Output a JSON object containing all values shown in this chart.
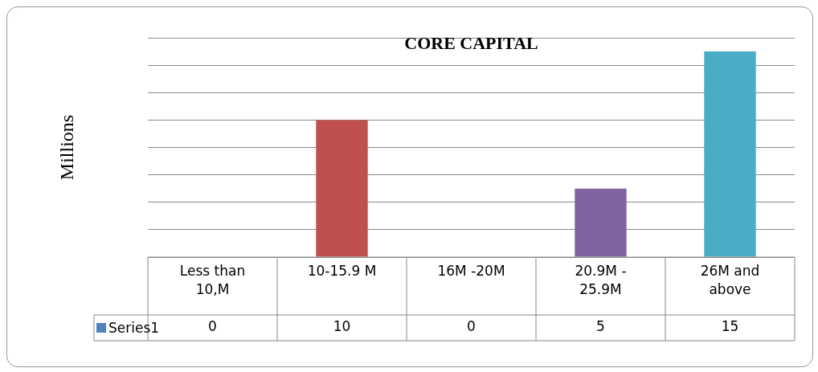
{
  "chart_data": {
    "type": "bar",
    "title": "CORE CAPITAL",
    "ylabel": "Millions",
    "categories": [
      "Less than 10,M",
      "10-15.9 M",
      "16M -20M",
      "20.9M - 25.9M",
      "26M and above"
    ],
    "series": [
      {
        "name": "Series1",
        "color": "#4f81bd",
        "colors": [
          "#4f81bd",
          "#c0504d",
          "#9bbb59",
          "#8064a2",
          "#4bacc6"
        ],
        "values": [
          0,
          10,
          0,
          5,
          15
        ]
      }
    ],
    "ylim": [
      0,
      16
    ],
    "yticks": [
      {
        "value": 0,
        "label": null
      },
      {
        "value": 2,
        "label": null
      },
      {
        "value": 4,
        "label": null
      },
      {
        "value": 6,
        "label": null
      },
      {
        "value": 8,
        "label": null
      },
      {
        "value": 10,
        "label": null
      },
      {
        "value": 12,
        "label": null
      },
      {
        "value": 14,
        "label": null
      },
      {
        "value": 16,
        "label": null
      }
    ],
    "tick_labels": "x",
    "grid": "y",
    "data_labels": true,
    "legend": "bottom left"
  }
}
